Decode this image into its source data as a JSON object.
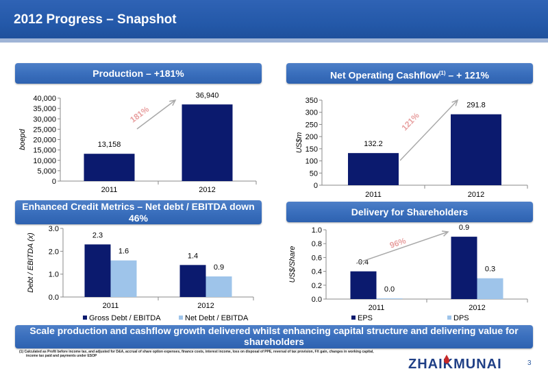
{
  "slide": {
    "title": "2012 Progress – Snapshot",
    "page_number": "3",
    "banner_text": "Scale production and cashflow growth delivered whilst enhancing capital structure and delivering value for shareholders",
    "footnote_line1": "(1) Calculated as Profit before income tax, and adjusted for D&A, accrual of share option expenses, finance costs, interest income, loss on disposal of PPE, reversal of tax provision, FX gain, changes in working capital,",
    "footnote_line2": "income tax paid and payments under ESOP",
    "logo_text": "ZHAIKMUNAI",
    "colors": {
      "dark_bar": "#0b1a6e",
      "light_bar": "#9ec4ea",
      "arrow": "#a9a9a9",
      "growth_text": "#e8a0a0",
      "header": "#2358a8"
    }
  },
  "panels": {
    "production_title": "Production – +181%",
    "cashflow_title_main": "Net Operating Cashflow",
    "cashflow_title_sup": "(1)",
    "cashflow_title_tail": " – + 121%",
    "credit_title_line1": "Enhanced Credit Metrics – Net debt / EBITDA down",
    "credit_title_line2": "46%",
    "delivery_title": "Delivery for Shareholders"
  },
  "chart_data": [
    {
      "id": "production",
      "type": "bar",
      "categories": [
        "2011",
        "2012"
      ],
      "series": [
        {
          "values": [
            13158,
            36940
          ],
          "labels": [
            "13,158",
            "36,940"
          ]
        }
      ],
      "ylabel": "boepd",
      "ylim": [
        0,
        40000
      ],
      "yticks": [
        0,
        5000,
        10000,
        15000,
        20000,
        25000,
        30000,
        35000,
        40000
      ],
      "ytick_labels": [
        "0",
        "5,000",
        "10,000",
        "15,000",
        "20,000",
        "25,000",
        "30,000",
        "35,000",
        "40,000"
      ],
      "annotation": "181%"
    },
    {
      "id": "cashflow",
      "type": "bar",
      "categories": [
        "2011",
        "2012"
      ],
      "series": [
        {
          "values": [
            132.2,
            291.8
          ],
          "labels": [
            "132.2",
            "291.8"
          ]
        }
      ],
      "ylabel": "US$m",
      "ylim": [
        0,
        350
      ],
      "yticks": [
        0,
        50,
        100,
        150,
        200,
        250,
        300,
        350
      ],
      "ytick_labels": [
        "0",
        "50",
        "100",
        "150",
        "200",
        "250",
        "300",
        "350"
      ],
      "annotation": "121%"
    },
    {
      "id": "credit",
      "type": "bar",
      "categories": [
        "2011",
        "2012"
      ],
      "series": [
        {
          "name": "Gross Debt / EBITDA",
          "values": [
            2.3,
            1.4
          ],
          "labels": [
            "2.3",
            "1.4"
          ]
        },
        {
          "name": "Net Debt / EBITDA",
          "values": [
            1.6,
            0.9
          ],
          "labels": [
            "1.6",
            "0.9"
          ]
        }
      ],
      "ylabel": "Debt / EBITDA (x)",
      "ylim": [
        0,
        3
      ],
      "yticks": [
        0,
        1,
        2,
        3
      ],
      "ytick_labels": [
        "0.0",
        "1.0",
        "2.0",
        "3.0"
      ],
      "legend": "bottom"
    },
    {
      "id": "delivery",
      "type": "bar",
      "categories": [
        "2011",
        "2012"
      ],
      "series": [
        {
          "name": "EPS",
          "values": [
            0.4,
            0.9
          ],
          "labels": [
            "0.4",
            "0.9"
          ]
        },
        {
          "name": "DPS",
          "values": [
            0.0,
            0.3
          ],
          "labels": [
            "0.0",
            "0.3"
          ]
        }
      ],
      "ylabel": "US$/Share",
      "ylim": [
        0,
        1
      ],
      "yticks": [
        0,
        0.2,
        0.4,
        0.6,
        0.8,
        1.0
      ],
      "ytick_labels": [
        "0.0",
        "0.2",
        "0.4",
        "0.6",
        "0.8",
        "1.0"
      ],
      "annotation": "96%",
      "legend": "bottom"
    }
  ]
}
